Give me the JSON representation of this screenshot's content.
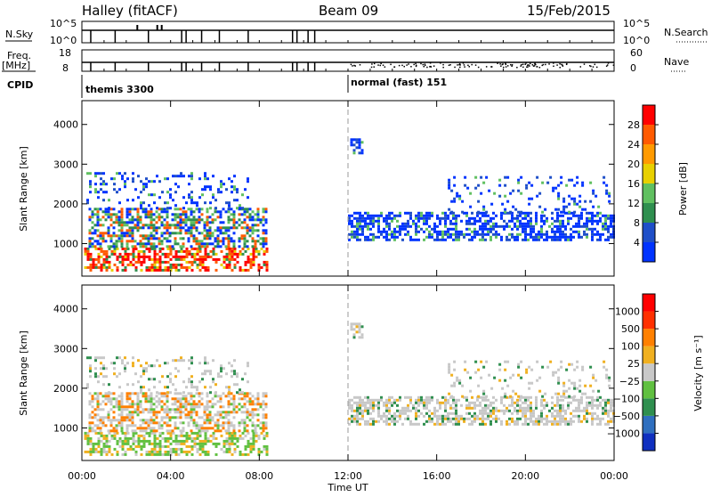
{
  "header": {
    "title": "Halley (fitACF)",
    "beam": "Beam 09",
    "date": "15/Feb/2015"
  },
  "params": {
    "nsky_label": "N.Sky",
    "nsky_ticks": [
      "10^5",
      "10^0"
    ],
    "nsearch_label": "N.Search",
    "nsearch_ticks": [
      "10^5",
      "10^0"
    ],
    "freq_label": "Freq.",
    "freq_unit": "[MHz]",
    "freq_ticks": [
      "18",
      "8"
    ],
    "nave_label": "Nave",
    "nave_ticks": [
      "60",
      "0"
    ],
    "cpid_label": "CPID",
    "cpid_modes": [
      {
        "label": "themis 3300",
        "start_hour": 0
      },
      {
        "label": "normal (fast) 151",
        "start_hour": 12
      }
    ]
  },
  "power_panel": {
    "ylabel": "Slant Range [km]",
    "yticks": [
      "4000",
      "3000",
      "2000",
      "1000"
    ],
    "colorbar_label": "Power [dB]",
    "colorbar_ticks": [
      "28",
      "24",
      "20",
      "16",
      "12",
      "8",
      "4"
    ],
    "colors": [
      "#0033ff",
      "#1f4fc8",
      "#2f8f4f",
      "#60c060",
      "#e8d000",
      "#ff9a00",
      "#ff5a00",
      "#ff0000"
    ]
  },
  "velocity_panel": {
    "ylabel": "Slant Range [km]",
    "yticks": [
      "4000",
      "3000",
      "2000",
      "1000"
    ],
    "colorbar_label": "Velocity [m s⁻¹]",
    "colorbar_ticks": [
      "1000",
      "500",
      "100",
      "25",
      "−25",
      "−100",
      "−500",
      "−1000"
    ],
    "colors": [
      "#1030c0",
      "#2f6fbf",
      "#2f8f4f",
      "#60c040",
      "#c8c8c8",
      "#f0b020",
      "#ff8000",
      "#ff3000",
      "#ff0000"
    ]
  },
  "xaxis": {
    "label": "Time UT",
    "ticks": [
      "00:00",
      "04:00",
      "08:00",
      "12:00",
      "16:00",
      "20:00",
      "00:00"
    ]
  },
  "chart_data": {
    "type": "heatmap",
    "title": "Halley (fitACF)",
    "xlabel": "Time UT",
    "ylabel": "Slant Range [km]",
    "x_range_hours": [
      0,
      24
    ],
    "y_range_km": [
      180,
      4600
    ],
    "scatter_regions": [
      {
        "name": "near-range band",
        "t_start": 0.1,
        "t_end": 8.3,
        "range_km": [
          300,
          900
        ]
      },
      {
        "name": "main echo band morning",
        "t_start": 0.3,
        "t_end": 8.3,
        "range_km": [
          900,
          1900
        ]
      },
      {
        "name": "high range sparse morning",
        "t_start": 0.2,
        "t_end": 7.5,
        "range_km": [
          1900,
          2800
        ]
      },
      {
        "name": "afternoon band",
        "t_start": 12.0,
        "t_end": 24.0,
        "range_km": [
          1100,
          1800
        ]
      },
      {
        "name": "evening high patches",
        "t_start": 16.5,
        "t_end": 23.8,
        "range_km": [
          1800,
          2700
        ]
      },
      {
        "name": "isolated patch noon",
        "t_start": 12.1,
        "t_end": 12.6,
        "range_km": [
          3300,
          3650
        ]
      }
    ],
    "power_colorbar": {
      "label": "Power [dB]",
      "ticks": [
        28,
        24,
        20,
        16,
        12,
        8,
        4
      ]
    },
    "velocity_colorbar": {
      "label": "Velocity [m s⁻¹]",
      "ticks": [
        1000,
        500,
        100,
        25,
        -25,
        -100,
        -500,
        -1000
      ]
    },
    "cpid_change_hour": 12
  }
}
